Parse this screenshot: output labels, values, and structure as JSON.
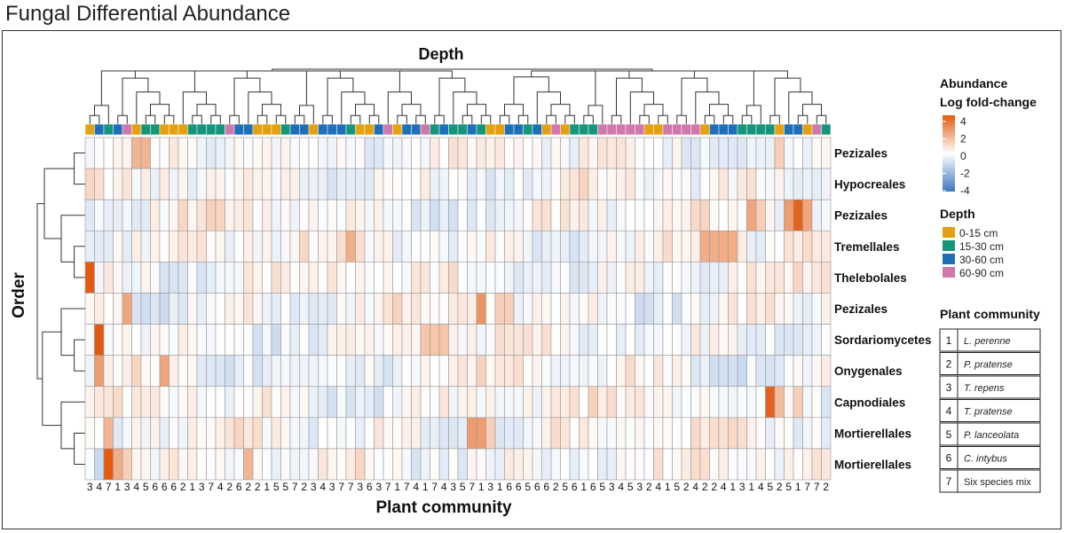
{
  "title": "Fungal Differential Abundance",
  "chart_data": {
    "type": "heatmap",
    "title": "Depth",
    "xlabel": "Plant community",
    "ylabel": "Order",
    "rows": [
      "Pezizales",
      "Hypocreales",
      "Pezizales",
      "Tremellales",
      "Thelebolales",
      "Pezizales",
      "Sordariomycetes",
      "Onygenales",
      "Capnodiales",
      "Mortierellales",
      "Mortierellales"
    ],
    "columns": [
      3,
      4,
      7,
      1,
      3,
      4,
      5,
      6,
      6,
      6,
      2,
      1,
      3,
      7,
      4,
      2,
      6,
      2,
      2,
      1,
      5,
      5,
      7,
      2,
      3,
      4,
      3,
      7,
      7,
      3,
      6,
      3,
      7,
      1,
      7,
      4,
      1,
      7,
      4,
      3,
      5,
      7,
      1,
      3,
      1,
      6,
      6,
      5,
      6,
      6,
      2,
      5,
      6,
      1,
      6,
      5,
      3,
      4,
      5,
      3,
      2,
      4,
      1,
      5,
      2,
      4,
      2,
      2,
      4,
      1,
      3,
      1,
      4,
      5,
      2,
      5,
      1,
      7,
      7,
      2
    ],
    "depth_groups": [
      "0-15",
      "30-60",
      "15-30",
      "30-60",
      "60-90",
      "0-15",
      "15-30",
      "15-30",
      "0-15",
      "0-15",
      "0-15",
      "15-30",
      "15-30",
      "15-30",
      "15-30",
      "60-90",
      "30-60",
      "30-60",
      "0-15",
      "0-15",
      "0-15",
      "15-30",
      "30-60",
      "30-60",
      "0-15",
      "30-60",
      "30-60",
      "30-60",
      "15-30",
      "0-15",
      "0-15",
      "30-60",
      "60-90",
      "0-15",
      "30-60",
      "30-60",
      "60-90",
      "15-30",
      "30-60",
      "15-30",
      "15-30",
      "30-60",
      "15-30",
      "0-15",
      "0-15",
      "30-60",
      "30-60",
      "15-30",
      "30-60",
      "0-15",
      "60-90",
      "0-15",
      "15-30",
      "15-30",
      "15-30",
      "60-90",
      "60-90",
      "60-90",
      "60-90",
      "60-90",
      "0-15",
      "0-15",
      "60-90",
      "60-90",
      "60-90",
      "60-90",
      "0-15",
      "30-60",
      "30-60",
      "30-60",
      "15-30",
      "15-30",
      "15-30",
      "15-30",
      "0-15",
      "30-60",
      "30-60",
      "0-15",
      "60-90",
      "15-30"
    ],
    "colorbar": {
      "title": "Abundance",
      "subtitle": "Log fold-change",
      "ticks": [
        "4",
        "2",
        "0",
        "-2",
        "-4"
      ],
      "range": [
        -4,
        4
      ],
      "colors": [
        "#3f77c2",
        "#ffffff",
        "#e35b10"
      ]
    },
    "depth_legend": {
      "title": "Depth",
      "items": [
        {
          "label": "0-15 cm",
          "key": "0-15",
          "color": "#e3a010"
        },
        {
          "label": "15-30 cm",
          "key": "15-30",
          "color": "#15957a"
        },
        {
          "label": "30-60 cm",
          "key": "30-60",
          "color": "#1f6fb8"
        },
        {
          "label": "60-90 cm",
          "key": "60-90",
          "color": "#cf78ac"
        }
      ]
    },
    "community_legend": {
      "title": "Plant community",
      "items": [
        {
          "num": "1",
          "name": "L. perenne"
        },
        {
          "num": "2",
          "name": "P. pratense"
        },
        {
          "num": "3",
          "name": "T. repens"
        },
        {
          "num": "4",
          "name": "T. pratense"
        },
        {
          "num": "5",
          "name": "P. lanceolata"
        },
        {
          "num": "6",
          "name": "C. intybus"
        },
        {
          "num": "7",
          "name": "Six species mix"
        }
      ]
    },
    "highlights": [
      {
        "row": 0,
        "col": 5,
        "value": 1.8
      },
      {
        "row": 0,
        "col": 6,
        "value": 1.8
      },
      {
        "row": 0,
        "col": 74,
        "value": 1.2
      },
      {
        "row": 2,
        "col": 71,
        "value": 2.2
      },
      {
        "row": 2,
        "col": 72,
        "value": 1.2
      },
      {
        "row": 2,
        "col": 75,
        "value": 2.4
      },
      {
        "row": 2,
        "col": 76,
        "value": 3.8
      },
      {
        "row": 2,
        "col": 77,
        "value": 2.2
      },
      {
        "row": 3,
        "col": 28,
        "value": 2.0
      },
      {
        "row": 3,
        "col": 66,
        "value": 2.0
      },
      {
        "row": 3,
        "col": 67,
        "value": 2.0
      },
      {
        "row": 3,
        "col": 68,
        "value": 2.0
      },
      {
        "row": 3,
        "col": 69,
        "value": 2.0
      },
      {
        "row": 4,
        "col": 0,
        "value": 4.0
      },
      {
        "row": 5,
        "col": 4,
        "value": 2.2
      },
      {
        "row": 5,
        "col": 42,
        "value": 2.6
      },
      {
        "row": 5,
        "col": 44,
        "value": 1.2
      },
      {
        "row": 5,
        "col": 45,
        "value": 1.2
      },
      {
        "row": 6,
        "col": 1,
        "value": 4.0
      },
      {
        "row": 6,
        "col": 36,
        "value": 1.4
      },
      {
        "row": 6,
        "col": 37,
        "value": 1.4
      },
      {
        "row": 6,
        "col": 38,
        "value": 1.4
      },
      {
        "row": 7,
        "col": 1,
        "value": 2.4
      },
      {
        "row": 7,
        "col": 8,
        "value": 2.2
      },
      {
        "row": 8,
        "col": 73,
        "value": 3.8
      },
      {
        "row": 8,
        "col": 74,
        "value": 1.6
      },
      {
        "row": 8,
        "col": 76,
        "value": 1.2
      },
      {
        "row": 9,
        "col": 2,
        "value": 1.8
      },
      {
        "row": 9,
        "col": 41,
        "value": 2.4
      },
      {
        "row": 9,
        "col": 42,
        "value": 2.4
      },
      {
        "row": 9,
        "col": 43,
        "value": 1.2
      },
      {
        "row": 10,
        "col": 2,
        "value": 4.0
      },
      {
        "row": 10,
        "col": 3,
        "value": 2.0
      },
      {
        "row": 10,
        "col": 4,
        "value": 1.2
      },
      {
        "row": 10,
        "col": 17,
        "value": 1.8
      }
    ]
  }
}
